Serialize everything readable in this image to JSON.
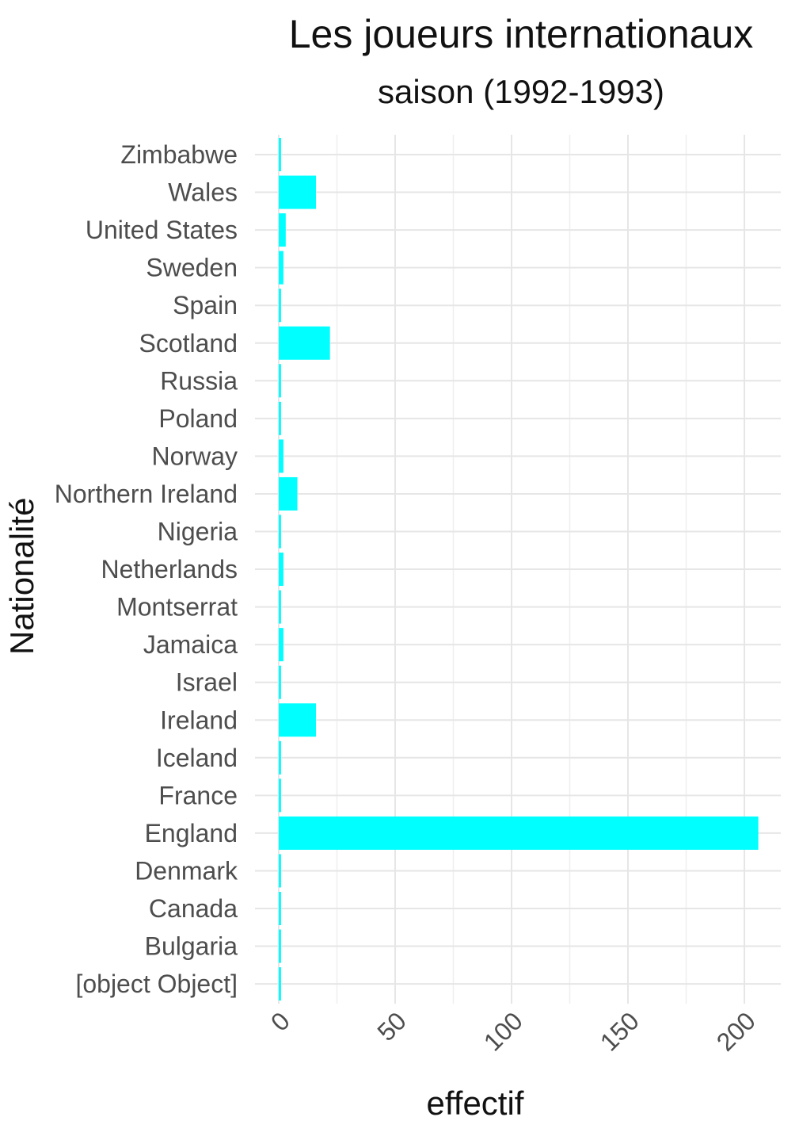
{
  "chart_data": {
    "type": "bar",
    "orientation": "horizontal",
    "title": "Les joueurs internationaux",
    "subtitle": "saison (1992-1993)",
    "xlabel": "effectif",
    "ylabel": "Nationalité",
    "xlim": [
      0,
      215
    ],
    "x_ticks": [
      0,
      50,
      100,
      150,
      200
    ],
    "x_tick_labels": [
      "0",
      "50",
      "100",
      "150",
      "200"
    ],
    "grid": true,
    "legend": "none",
    "bar_color": "#00FFFF",
    "categories": [
      "Zimbabwe",
      "Wales",
      "United States",
      "Sweden",
      "Spain",
      "Scotland",
      "Russia",
      "Poland",
      "Norway",
      "Northern Ireland",
      "Nigeria",
      "Netherlands",
      "Montserrat",
      "Jamaica",
      "Israel",
      "Ireland",
      "Iceland",
      "France",
      "England",
      "Denmark",
      "Canada",
      "Bulgaria",
      "[object Object]"
    ],
    "values": [
      1,
      16,
      3,
      2,
      1,
      22,
      1,
      1,
      2,
      8,
      1,
      2,
      1,
      2,
      1,
      16,
      1,
      1,
      206,
      1,
      1,
      1,
      1
    ]
  }
}
